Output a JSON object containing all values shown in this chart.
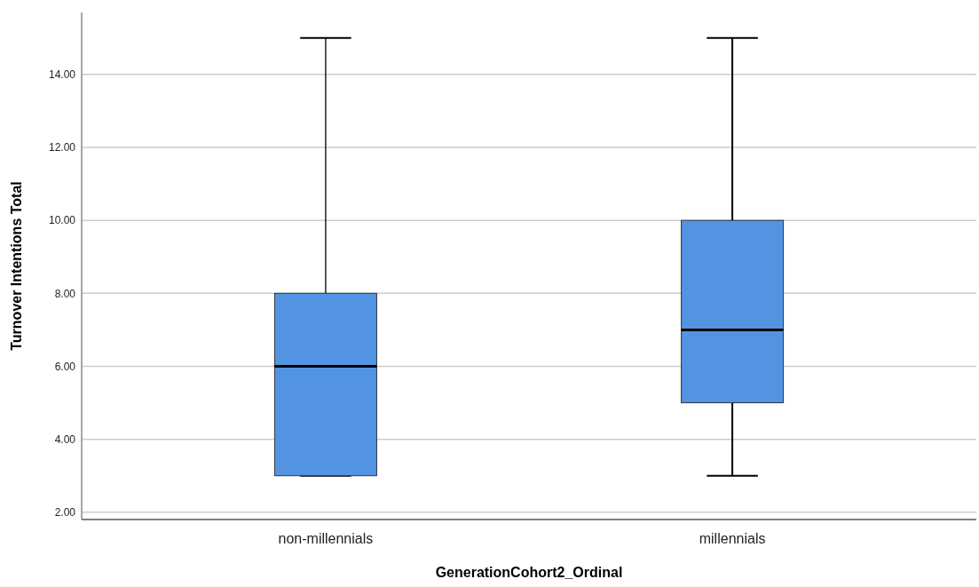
{
  "chart_data": {
    "type": "box",
    "xlabel": "GenerationCohort2_Ordinal",
    "ylabel": "Turnover Intentions Total",
    "categories": [
      "non-millennials",
      "millennials"
    ],
    "color": "#5294e2",
    "boxes": [
      {
        "low": 3,
        "q1": 3,
        "median": 6,
        "q3": 8,
        "high": 15
      },
      {
        "low": 3,
        "q1": 5,
        "median": 7,
        "q3": 10,
        "high": 15
      }
    ],
    "ylim": [
      1.8,
      15.7
    ],
    "yticks": [
      {
        "value": 2,
        "label": "2.00"
      },
      {
        "value": 4,
        "label": "4.00"
      },
      {
        "value": 6,
        "label": "6.00"
      },
      {
        "value": 8,
        "label": "8.00"
      },
      {
        "value": 10,
        "label": "10.00"
      },
      {
        "value": 12,
        "label": "12.00"
      },
      {
        "value": 14,
        "label": "14.00"
      }
    ],
    "grid": "y"
  }
}
